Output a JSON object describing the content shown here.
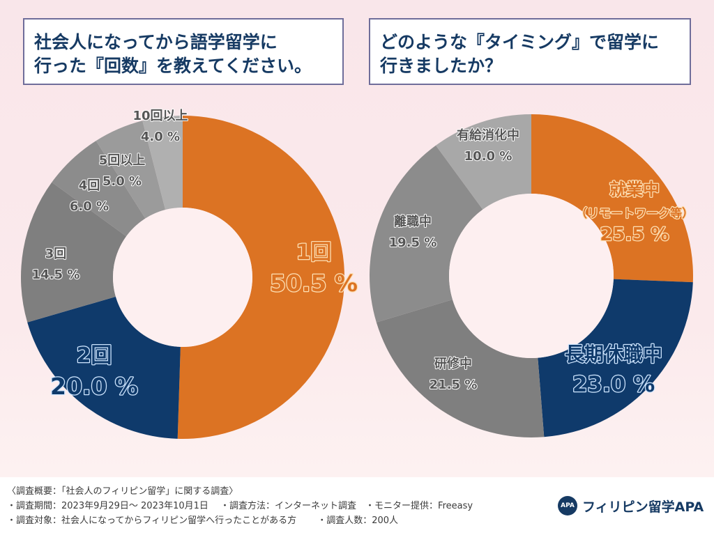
{
  "questions": {
    "q1": {
      "line1": "社会人になってから語学留学に",
      "line2": "行った『回数』を教えてください。"
    },
    "q2": {
      "line1": "どのような『タイミング』で留学に",
      "line2": "行きましたか？"
    }
  },
  "chart_data": [
    {
      "type": "pie",
      "donut": true,
      "title": "社会人になってから語学留学に行った『回数』を教えてください。",
      "unit": "%",
      "categories": [
        "1回",
        "2回",
        "3回",
        "4回",
        "5回以上",
        "10回以上"
      ],
      "values": [
        50.5,
        20.0,
        14.5,
        6.0,
        5.0,
        4.0
      ],
      "colors": [
        "#dc7323",
        "#0f3a6b",
        "#7f7f7f",
        "#8c8c8c",
        "#9b9b9b",
        "#b0b0b0"
      ],
      "labels": [
        "50.5 %",
        "20.0 %",
        "14.5 %",
        "6.0 %",
        "5.0 %",
        "4.0 %"
      ]
    },
    {
      "type": "pie",
      "donut": true,
      "title": "どのような『タイミング』で留学に行きましたか？",
      "unit": "%",
      "categories": [
        "就業中（リモートワーク等）",
        "長期休職中",
        "研修中",
        "離職中",
        "有給消化中"
      ],
      "display_names": [
        [
          "就業中",
          "（リモートワーク等）"
        ],
        [
          "長期休職中"
        ],
        [
          "研修中"
        ],
        [
          "離職中"
        ],
        [
          "有給消化中"
        ]
      ],
      "values": [
        25.5,
        23.0,
        21.5,
        19.5,
        10.0
      ],
      "colors": [
        "#dc7323",
        "#0f3a6b",
        "#7f7f7f",
        "#8c8c8c",
        "#a8a8a8"
      ],
      "labels": [
        "25.5 %",
        "23.0 %",
        "21.5 %",
        "19.5 %",
        "10.0 %"
      ]
    }
  ],
  "footer": {
    "line1": "〈調査概要：「社会人のフィリピン留学」に関する調査〉",
    "line2": "・調査期間：2023年9月29日～ 2023年10月1日　 ・調査方法：インターネット調査　・モニター提供：Freeasy",
    "line3": "・調査対象：社会人になってからフィリピン留学へ行ったことがある方　　 ・調査人数：200人",
    "logo_mark": "APA",
    "logo_text": "フィリピン留学APA"
  }
}
